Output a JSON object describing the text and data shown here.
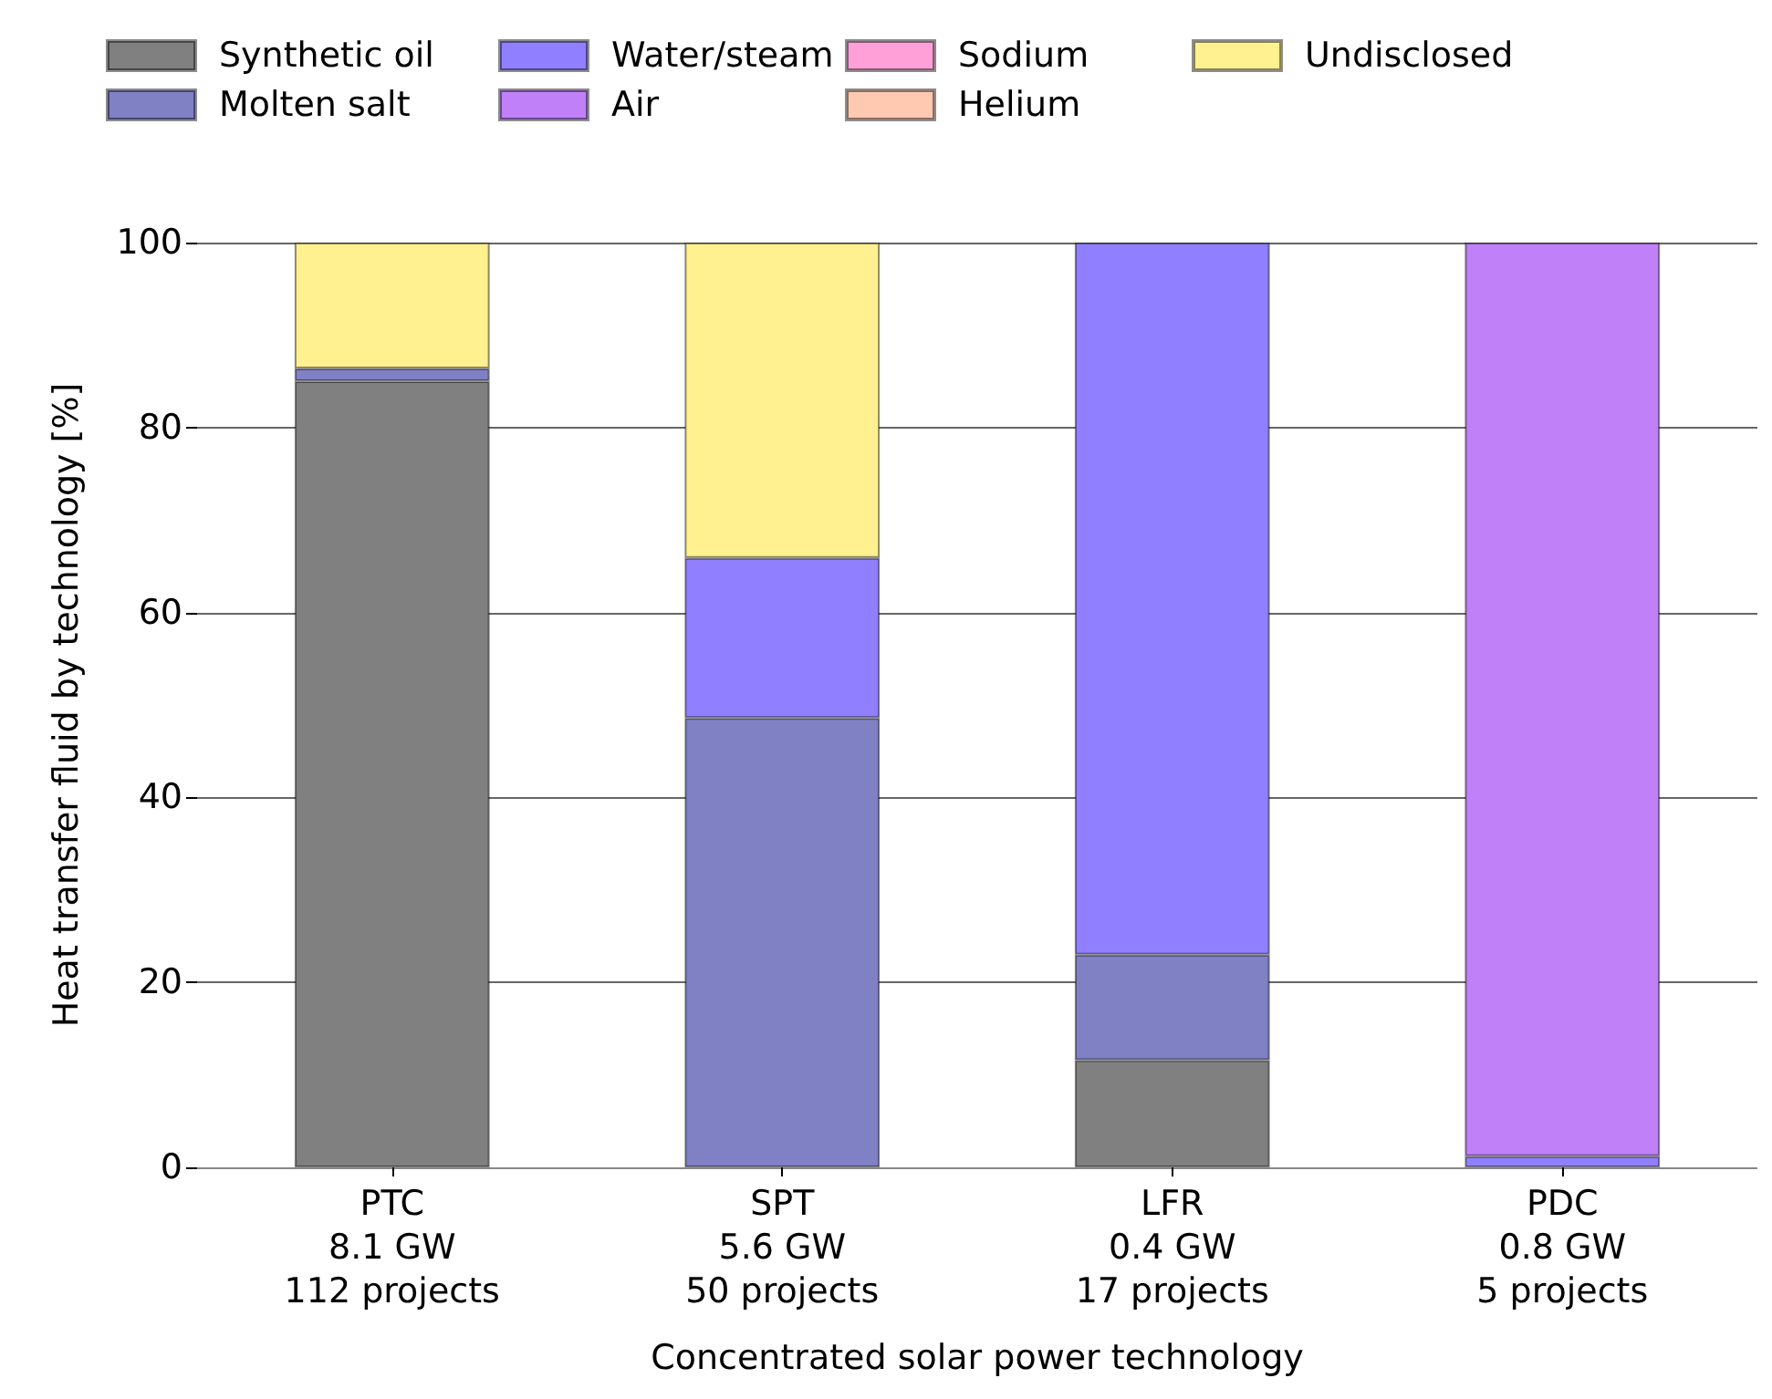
{
  "chart_data": {
    "type": "bar",
    "stacked": true,
    "xlabel": "Concentrated solar power technology",
    "ylabel": "Heat transfer fluid by technology [%]",
    "categories": [
      "PTC\n8.1 GW\n112 projects",
      "SPT\n5.6 GW\n50 projects",
      "LFR\n0.4 GW\n17 projects",
      "PDC\n0.8 GW\n5 projects"
    ],
    "series": [
      {
        "name": "Synthetic oil",
        "color": "#808080",
        "values": [
          85,
          0,
          11.6,
          0
        ]
      },
      {
        "name": "Molten salt",
        "color": "#8080c4",
        "values": [
          1.4,
          48.6,
          11.4,
          0
        ]
      },
      {
        "name": "Water/steam",
        "color": "#9080ff",
        "values": [
          0,
          17.3,
          77,
          1.2
        ]
      },
      {
        "name": "Air",
        "color": "#c080f8",
        "values": [
          0,
          0,
          0,
          98.8
        ]
      },
      {
        "name": "Sodium",
        "color": "#ffa0d8",
        "values": [
          0,
          0,
          0,
          0
        ]
      },
      {
        "name": "Helium",
        "color": "#ffc8b0",
        "values": [
          0,
          0,
          0,
          0
        ]
      },
      {
        "name": "Undisclosed",
        "color": "#fff090",
        "values": [
          13.6,
          34.1,
          0,
          0
        ]
      }
    ],
    "ylim": [
      0,
      100
    ],
    "yticks": [
      0,
      20,
      40,
      60,
      80,
      100
    ],
    "grid": "y",
    "legend": "top"
  }
}
